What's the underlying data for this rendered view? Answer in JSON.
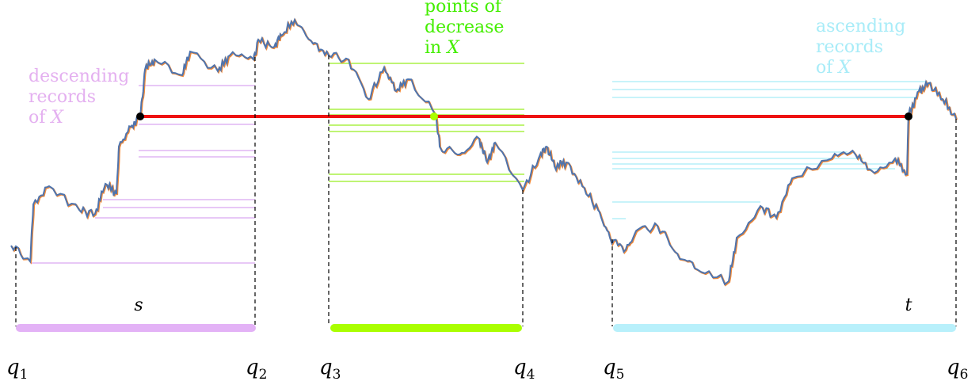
{
  "annotations": [
    {
      "lines": [
        "descending",
        "records",
        "of"
      ],
      "variable": "X"
    },
    {
      "lines": [
        "points of",
        "decrease",
        "in"
      ],
      "variable": "X"
    },
    {
      "lines": [
        "ascending",
        "records",
        "of"
      ],
      "variable": "X"
    }
  ],
  "intervals": [
    "s",
    "t"
  ],
  "markers": [
    {
      "name": "q",
      "index": "1"
    },
    {
      "name": "q",
      "index": "2"
    },
    {
      "name": "q",
      "index": "3"
    },
    {
      "name": "q",
      "index": "4"
    },
    {
      "name": "q",
      "index": "5"
    },
    {
      "name": "q",
      "index": "6"
    }
  ]
}
